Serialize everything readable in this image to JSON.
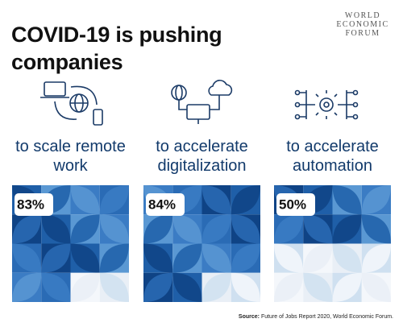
{
  "chart_data": {
    "type": "waffle",
    "title": "COVID-19 is pushing companies",
    "logo_lines": [
      "WORLD",
      "ECONOMIC",
      "FORUM"
    ],
    "categories": [
      "to scale remote work",
      "to accelerate digitalization",
      "to accelerate automation"
    ],
    "values": [
      83,
      84,
      50
    ],
    "value_labels": [
      "83%",
      "84%",
      "50%"
    ],
    "source_label": "Source:",
    "source": "Future of Jobs Report 2020, World Economic Forum."
  }
}
